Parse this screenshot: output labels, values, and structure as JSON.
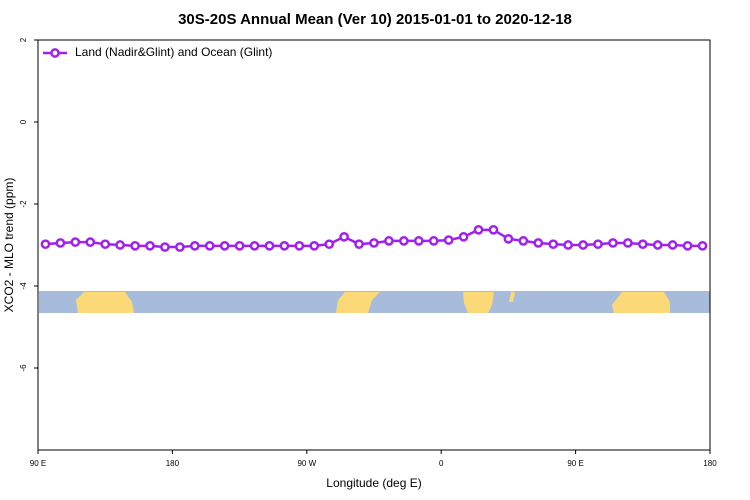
{
  "chart_data": {
    "type": "line",
    "title": "30S-20S Annual Mean (Ver 10)   2015-01-01 to 2020-12-18",
    "x_label": "Longitude (deg E)",
    "y_label": "XCO2 - MLO trend (ppm)",
    "xlim": [
      90,
      540
    ],
    "xticks": [
      {
        "value": 90,
        "label": "90 E"
      },
      180,
      {
        "value": 270,
        "label": "90 W"
      },
      {
        "value": 360,
        "label": "0"
      },
      {
        "value": 450,
        "label": "90 E"
      },
      {
        "value": 540,
        "label": "180"
      }
    ],
    "ylim": [
      -8,
      2
    ],
    "yticks": [
      2,
      0,
      -2,
      -4,
      -6
    ],
    "legend": "upper left",
    "series": [
      {
        "name": "Land (Nadir&Glint) and Ocean (Glint)",
        "color": "#a020f0",
        "x": [
          95,
          105,
          115,
          125,
          135,
          145,
          155,
          165,
          175,
          185,
          195,
          205,
          215,
          225,
          235,
          245,
          255,
          265,
          275,
          285,
          295,
          305,
          315,
          325,
          335,
          345,
          355,
          365,
          375,
          385,
          395,
          405,
          415,
          425,
          435,
          445,
          455,
          465,
          475,
          485,
          495,
          505,
          515,
          525,
          535
        ],
        "values": [
          -2.98,
          -2.95,
          -2.93,
          -2.93,
          -2.98,
          -3.0,
          -3.02,
          -3.02,
          -3.05,
          -3.05,
          -3.02,
          -3.02,
          -3.02,
          -3.02,
          -3.02,
          -3.02,
          -3.02,
          -3.02,
          -3.02,
          -2.98,
          -2.8,
          -2.98,
          -2.95,
          -2.9,
          -2.9,
          -2.9,
          -2.9,
          -2.88,
          -2.8,
          -2.63,
          -2.63,
          -2.85,
          -2.9,
          -2.95,
          -2.98,
          -3.0,
          -3.0,
          -2.98,
          -2.95,
          -2.95,
          -2.98,
          -3.0,
          -3.0,
          -3.02,
          -3.02
        ]
      }
    ]
  }
}
